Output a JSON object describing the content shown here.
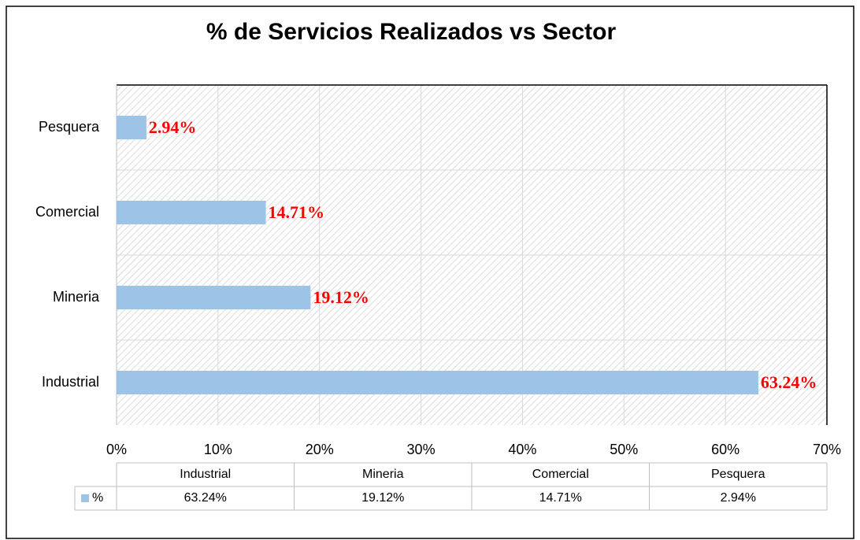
{
  "chart_data": {
    "type": "bar",
    "orientation": "horizontal",
    "title": "% de Servicios Realizados vs Sector",
    "categories": [
      "Industrial",
      "Mineria",
      "Comercial",
      "Pesquera"
    ],
    "series": [
      {
        "name": "%",
        "color": "#9dc3e6",
        "values": [
          63.24,
          19.12,
          14.71,
          2.94
        ],
        "value_labels": [
          "63.24%",
          "19.12%",
          "14.71%",
          "2.94%"
        ]
      }
    ],
    "xlim": [
      0,
      70
    ],
    "xticks": [
      {
        "value": 0,
        "label": "0%"
      },
      {
        "value": 10,
        "label": "10%"
      },
      {
        "value": 20,
        "label": "20%"
      },
      {
        "value": 30,
        "label": "30%"
      },
      {
        "value": 40,
        "label": "40%"
      },
      {
        "value": 50,
        "label": "50%"
      },
      {
        "value": 60,
        "label": "60%"
      },
      {
        "value": 70,
        "label": "70%"
      }
    ],
    "grid": true,
    "data_table": true
  }
}
